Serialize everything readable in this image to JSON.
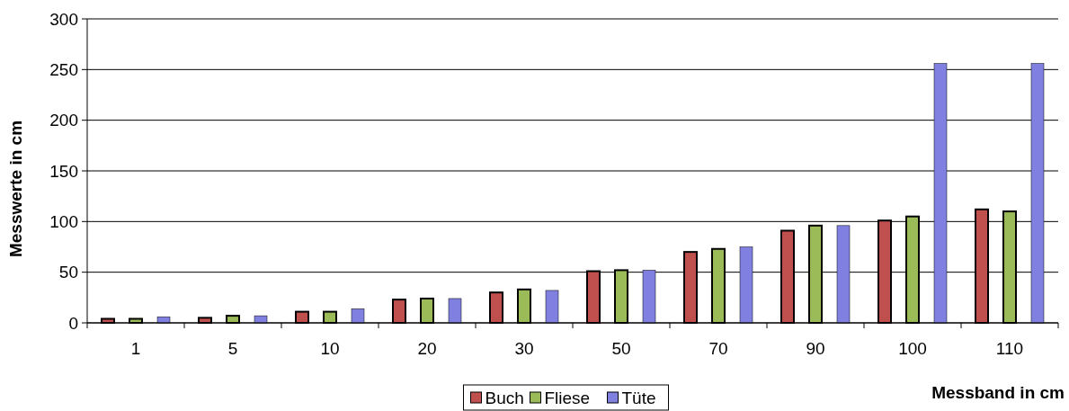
{
  "chart_data": {
    "type": "bar",
    "xlabel": "Messband in cm",
    "ylabel": "Messwerte in cm",
    "categories": [
      "1",
      "5",
      "10",
      "20",
      "30",
      "50",
      "70",
      "90",
      "100",
      "110"
    ],
    "series": [
      {
        "name": "Buch",
        "color": "#c0504d",
        "values": [
          4,
          5,
          11,
          23,
          30,
          51,
          70,
          91,
          101,
          112
        ]
      },
      {
        "name": "Fliese",
        "color": "#9bbb59",
        "values": [
          4,
          7,
          11,
          24,
          33,
          52,
          73,
          96,
          105,
          110
        ]
      },
      {
        "name": "Tüte",
        "color": "#8080e0",
        "values": [
          6,
          7,
          14,
          24,
          32,
          52,
          75,
          96,
          256,
          256
        ]
      }
    ],
    "ylim": [
      0,
      300
    ],
    "yticks": [
      0,
      50,
      100,
      150,
      200,
      250,
      300
    ],
    "grid": "y",
    "legend": "bottom"
  }
}
